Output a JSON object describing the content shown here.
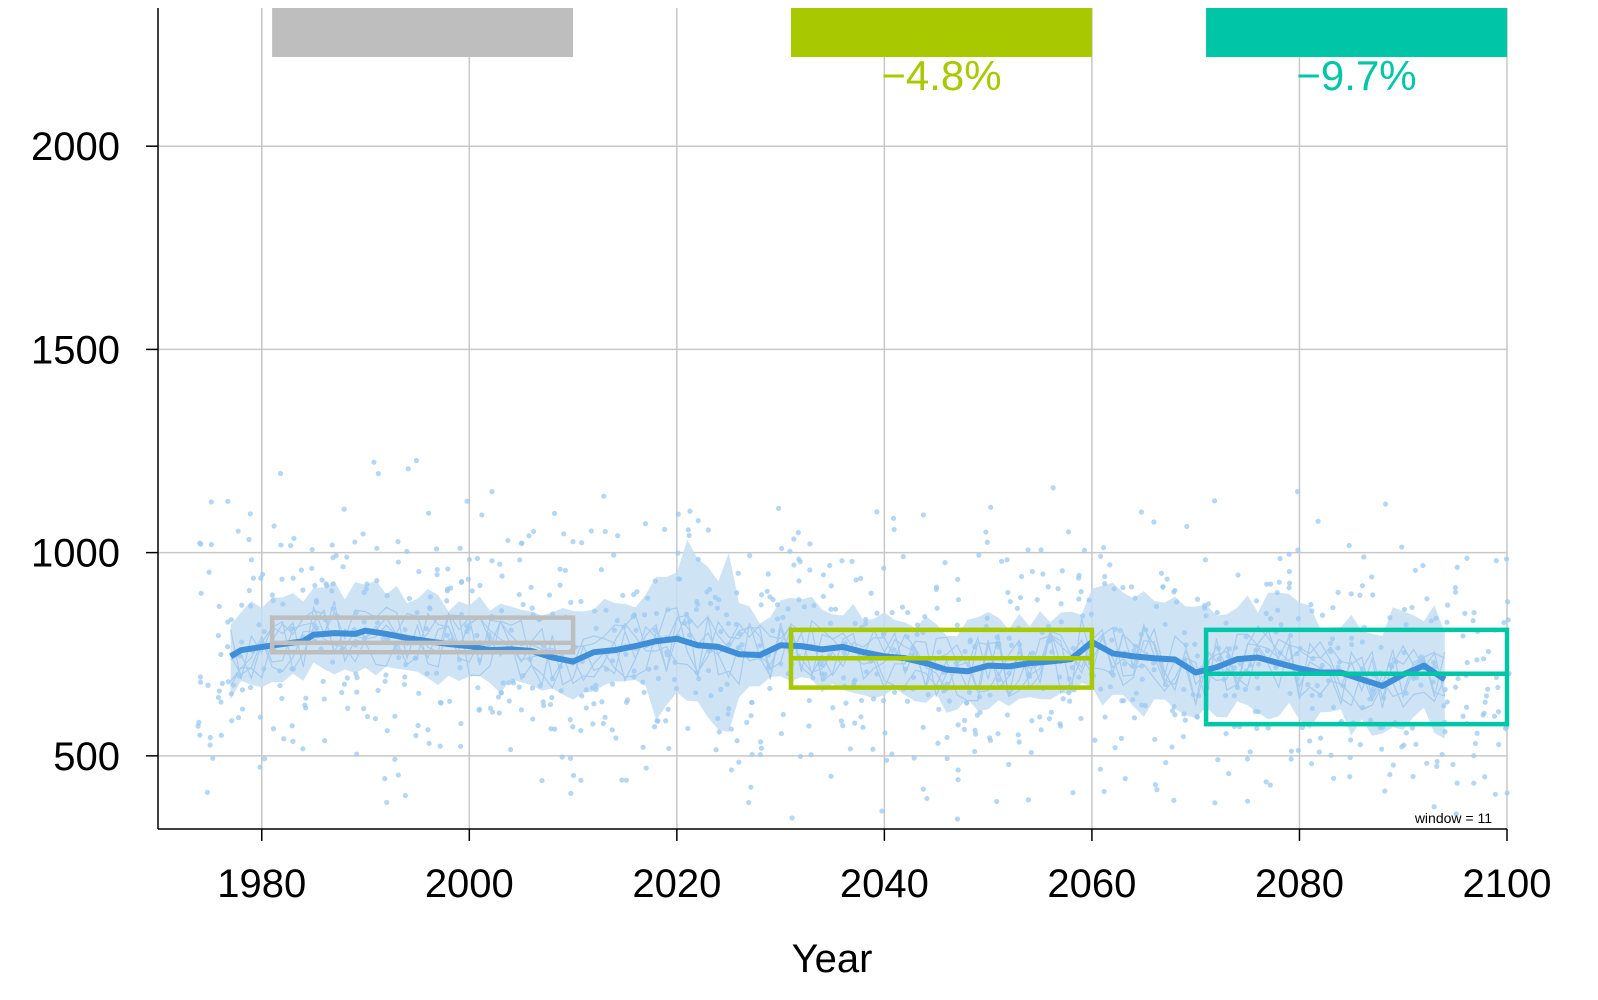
{
  "chart_data": {
    "type": "line",
    "xlabel": "Year",
    "ylabel": "",
    "xlim": [
      1970,
      2100
    ],
    "ylim": [
      320,
      2340
    ],
    "xticks": [
      1980,
      2000,
      2020,
      2040,
      2060,
      2080,
      2100
    ],
    "yticks": [
      500,
      1000,
      1500,
      2000
    ],
    "grid": true,
    "window_label": "window =  11",
    "series": [
      {
        "role": "running-mean",
        "color": "#3f8fd8",
        "x": [
          1977,
          1978,
          1980,
          1982,
          1984,
          1985,
          1987,
          1989,
          1990,
          1992,
          1994,
          1996,
          1998,
          2000,
          2002,
          2004,
          2006,
          2008,
          2010,
          2012,
          2014,
          2016,
          2018,
          2020,
          2022,
          2024,
          2026,
          2028,
          2030,
          2032,
          2034,
          2036,
          2038,
          2040,
          2042,
          2044,
          2046,
          2048,
          2050,
          2052,
          2054,
          2056,
          2058,
          2060,
          2062,
          2064,
          2066,
          2068,
          2070,
          2072,
          2074,
          2076,
          2078,
          2080,
          2082,
          2084,
          2086,
          2088,
          2090,
          2092,
          2094
        ],
        "y": [
          745,
          760,
          768,
          775,
          782,
          798,
          802,
          800,
          808,
          800,
          790,
          782,
          775,
          770,
          760,
          762,
          758,
          742,
          732,
          755,
          760,
          770,
          782,
          788,
          772,
          768,
          750,
          748,
          772,
          770,
          762,
          768,
          755,
          745,
          740,
          728,
          712,
          708,
          722,
          720,
          728,
          732,
          738,
          780,
          752,
          745,
          740,
          737,
          705,
          718,
          738,
          742,
          728,
          715,
          705,
          705,
          688,
          672,
          700,
          722,
          688
        ]
      }
    ],
    "periods": [
      {
        "start": 1981,
        "end": 2010,
        "color": "#bebebe",
        "label": "",
        "mean": 778,
        "low": 755,
        "high": 840
      },
      {
        "start": 2031,
        "end": 2060,
        "color": "#a8c800",
        "label": "−4.8%",
        "mean": 740,
        "low": 668,
        "high": 810
      },
      {
        "start": 2071,
        "end": 2100,
        "color": "#00c6a8",
        "label": "−9.7%",
        "mean": 702,
        "low": 578,
        "high": 810
      }
    ],
    "scatter_color": "#9ccaf0",
    "band_color": "#c6dff3"
  }
}
